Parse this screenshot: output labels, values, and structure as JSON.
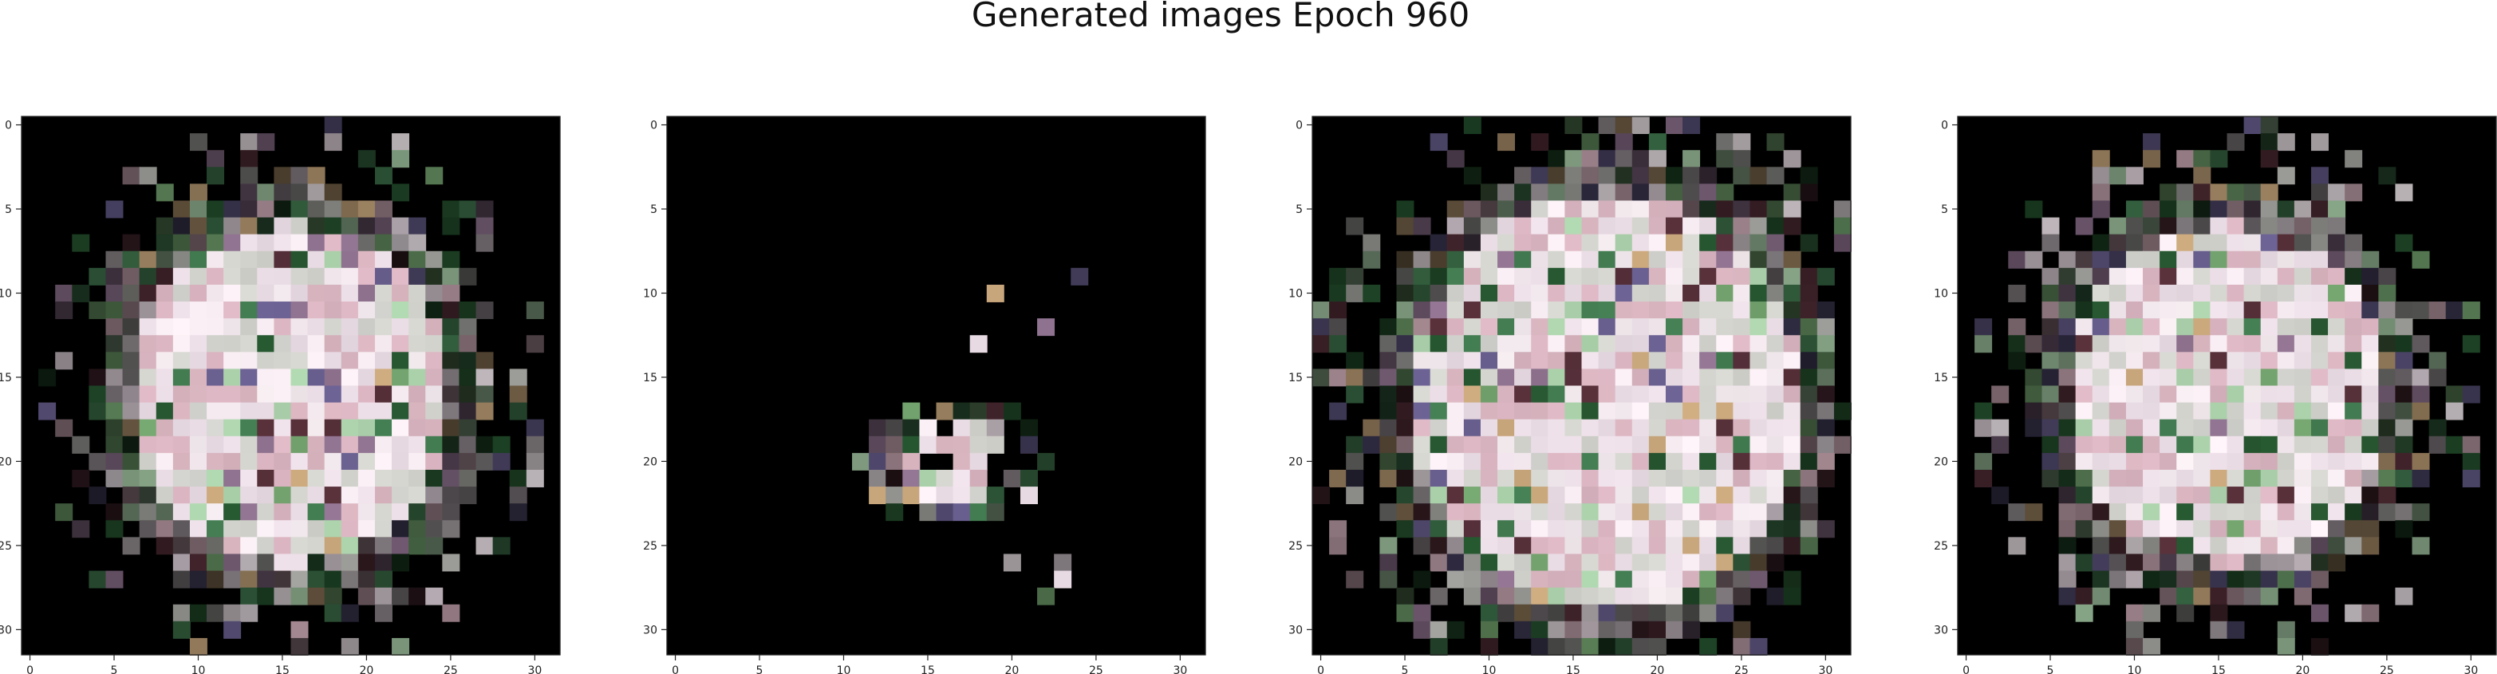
{
  "figure": {
    "title": "Generated images Epoch 960",
    "background_color": "#ffffff",
    "image_background_color": "#000000",
    "axis_color": "#222222",
    "grid_size": 32
  },
  "panels": [
    {
      "name": "generated-image-1",
      "x_ticks": [
        0,
        5,
        10,
        15,
        20,
        25,
        30
      ],
      "y_ticks": [
        0,
        5,
        10,
        15,
        20,
        25,
        30
      ],
      "xlim": [
        -0.5,
        31.5
      ],
      "ylim": [
        31.5,
        -0.5
      ],
      "pixel_art": "seed-a"
    },
    {
      "name": "generated-image-2",
      "x_ticks": [
        0,
        5,
        10,
        15,
        20,
        25,
        30
      ],
      "y_ticks": [
        0,
        5,
        10,
        15,
        20,
        25,
        30
      ],
      "xlim": [
        -0.5,
        31.5
      ],
      "ylim": [
        31.5,
        -0.5
      ],
      "pixel_art": "seed-b"
    },
    {
      "name": "generated-image-3",
      "x_ticks": [
        0,
        5,
        10,
        15,
        20,
        25,
        30
      ],
      "y_ticks": [
        0,
        5,
        10,
        15,
        20,
        25,
        30
      ],
      "xlim": [
        -0.5,
        31.5
      ],
      "ylim": [
        31.5,
        -0.5
      ],
      "pixel_art": "seed-c"
    },
    {
      "name": "generated-image-4",
      "x_ticks": [
        0,
        5,
        10,
        15,
        20,
        25,
        30
      ],
      "y_ticks": [
        0,
        5,
        10,
        15,
        20,
        25,
        30
      ],
      "xlim": [
        -0.5,
        31.5
      ],
      "ylim": [
        31.5,
        -0.5
      ],
      "pixel_art": "seed-d"
    }
  ]
}
